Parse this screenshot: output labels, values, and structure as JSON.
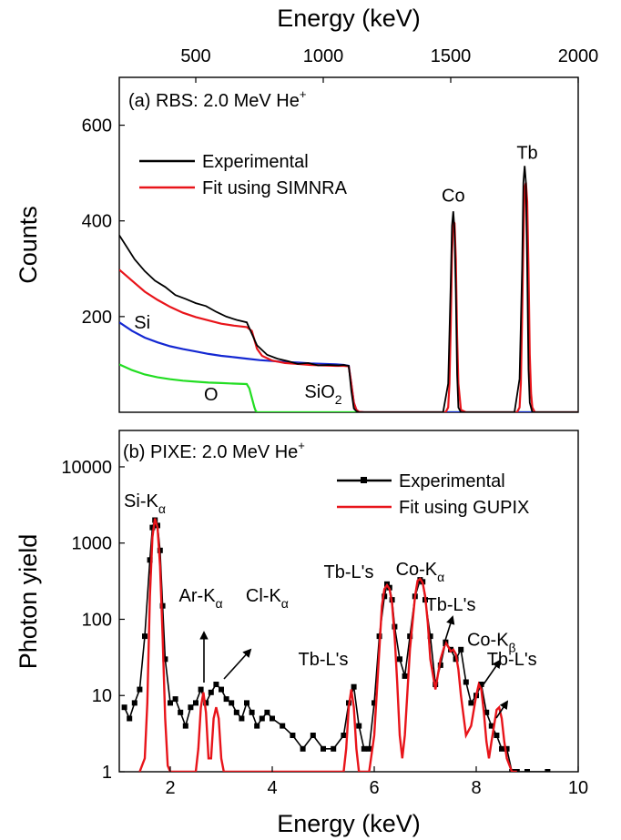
{
  "chart_data": [
    {
      "panel": "a",
      "type": "line",
      "title": "(a) RBS: 2.0 MeV He",
      "title_sup": "+",
      "xlabel": "Energy (keV)",
      "ylabel": "Counts",
      "xlim": [
        200,
        2000
      ],
      "ylim": [
        0,
        700
      ],
      "xticks": [
        500,
        1000,
        1500,
        2000
      ],
      "yticks": [
        200,
        400,
        600
      ],
      "legend": "top-left",
      "annotations": [
        {
          "text": "Co",
          "x": 1510,
          "y": 440
        },
        {
          "text": "Tb",
          "x": 1800,
          "y": 530
        },
        {
          "text": "Si",
          "x": 290,
          "y": 175
        },
        {
          "text": "O",
          "x": 560,
          "y": 25
        },
        {
          "text": "SiO",
          "sub": "2",
          "x": 1000,
          "y": 30
        }
      ],
      "series": [
        {
          "name": "Experimental",
          "color": "#000000",
          "x": [
            200,
            230,
            260,
            300,
            340,
            380,
            420,
            460,
            500,
            540,
            580,
            620,
            660,
            700,
            740,
            780,
            820,
            860,
            900,
            940,
            980,
            1020,
            1060,
            1080,
            1100,
            1110,
            1120,
            1130,
            1140,
            1160,
            1200,
            1300,
            1400,
            1470,
            1490,
            1500,
            1505,
            1510,
            1515,
            1520,
            1525,
            1530,
            1540,
            1560,
            1650,
            1750,
            1770,
            1780,
            1785,
            1790,
            1795,
            1800,
            1805,
            1810,
            1820,
            1840,
            1900,
            2000
          ],
          "y": [
            370,
            345,
            320,
            295,
            275,
            262,
            245,
            237,
            228,
            222,
            210,
            200,
            193,
            188,
            140,
            120,
            112,
            107,
            101,
            103,
            98,
            99,
            98,
            99,
            97,
            45,
            8,
            2,
            0,
            0,
            0,
            0,
            0,
            0,
            60,
            270,
            390,
            420,
            380,
            250,
            80,
            10,
            0,
            0,
            0,
            0,
            70,
            300,
            480,
            515,
            480,
            300,
            90,
            20,
            0,
            0,
            0,
            0
          ]
        },
        {
          "name": "Fit using SIMNRA",
          "color": "#e8141a",
          "x": [
            200,
            250,
            300,
            350,
            400,
            450,
            500,
            550,
            600,
            650,
            700,
            720,
            740,
            760,
            800,
            850,
            900,
            950,
            1000,
            1050,
            1080,
            1100,
            1110,
            1120,
            1130,
            1140,
            1160,
            1400,
            1480,
            1490,
            1495,
            1500,
            1505,
            1510,
            1515,
            1520,
            1525,
            1530,
            1540,
            1560,
            1700,
            1760,
            1770,
            1775,
            1780,
            1785,
            1790,
            1795,
            1800,
            1805,
            1810,
            1815,
            1820,
            1830,
            1850,
            2000
          ],
          "y": [
            298,
            275,
            252,
            235,
            220,
            208,
            199,
            192,
            185,
            181,
            178,
            170,
            133,
            118,
            108,
            103,
            101,
            99,
            98,
            97,
            97,
            96,
            60,
            20,
            5,
            1,
            0,
            0,
            0,
            10,
            60,
            180,
            330,
            400,
            395,
            320,
            160,
            60,
            5,
            0,
            0,
            0,
            10,
            60,
            200,
            360,
            470,
            480,
            440,
            300,
            120,
            40,
            10,
            0,
            0,
            0
          ]
        },
        {
          "color": "#1428d2",
          "x": [
            200,
            250,
            300,
            350,
            400,
            450,
            500,
            550,
            600,
            650,
            700,
            750,
            800,
            850,
            900,
            950,
            1000,
            1050,
            1080,
            1100,
            1110,
            1120,
            1130,
            1140,
            1160,
            2000
          ],
          "y": [
            188,
            170,
            156,
            146,
            138,
            132,
            127,
            122,
            118,
            115,
            112,
            109,
            107,
            105,
            104,
            102,
            101,
            100,
            99,
            97,
            60,
            20,
            5,
            1,
            0,
            0
          ]
        },
        {
          "color": "#22dd22",
          "x": [
            200,
            250,
            300,
            350,
            400,
            450,
            500,
            550,
            600,
            650,
            700,
            710,
            720,
            730,
            735,
            740,
            2000
          ],
          "y": [
            100,
            88,
            79,
            73,
            69,
            66,
            64,
            62,
            61,
            60,
            59,
            50,
            30,
            10,
            3,
            0,
            0
          ]
        }
      ]
    },
    {
      "panel": "b",
      "type": "line",
      "title": "(b) PIXE: 2.0 MeV He",
      "title_sup": "+",
      "xlabel": "Energy (keV)",
      "ylabel": "Photon yield",
      "xlim": [
        1,
        10
      ],
      "ylim": [
        1,
        30000
      ],
      "yscale": "log",
      "xticks": [
        2,
        4,
        6,
        8,
        10
      ],
      "yticks": [
        1,
        10,
        100,
        1000,
        10000
      ],
      "legend": "top-right",
      "annotations": [
        {
          "text": "Si-K",
          "sub": "α",
          "x": 1.5,
          "y": 3000
        },
        {
          "text": "Ar-K",
          "sub": "α",
          "x": 2.6,
          "y": 170
        },
        {
          "text": "Cl-K",
          "sub": "α",
          "x": 3.9,
          "y": 170
        },
        {
          "text": "Tb-L's",
          "x": 5.5,
          "y": 350
        },
        {
          "text": "Co-K",
          "sub": "α",
          "x": 6.9,
          "y": 380
        },
        {
          "text": "Tb-L's",
          "x": 7.5,
          "y": 130
        },
        {
          "text": "Tb-L's",
          "x": 5.0,
          "y": 25
        },
        {
          "text": "Co-K",
          "sub": "β",
          "x": 8.3,
          "y": 45
        },
        {
          "text": "Tb-L's",
          "x": 8.7,
          "y": 25
        }
      ],
      "series": [
        {
          "name": "Experimental",
          "color": "#000000",
          "x": [
            1.1,
            1.2,
            1.3,
            1.4,
            1.5,
            1.6,
            1.65,
            1.7,
            1.75,
            1.8,
            1.85,
            1.9,
            2.0,
            2.1,
            2.2,
            2.3,
            2.4,
            2.5,
            2.6,
            2.7,
            2.8,
            2.9,
            3.0,
            3.1,
            3.2,
            3.3,
            3.4,
            3.5,
            3.6,
            3.7,
            3.8,
            3.9,
            4.0,
            4.2,
            4.4,
            4.6,
            4.8,
            5.0,
            5.2,
            5.4,
            5.5,
            5.6,
            5.7,
            5.8,
            5.9,
            6.0,
            6.1,
            6.2,
            6.25,
            6.3,
            6.35,
            6.4,
            6.5,
            6.6,
            6.7,
            6.8,
            6.9,
            6.95,
            7.0,
            7.1,
            7.2,
            7.3,
            7.4,
            7.5,
            7.6,
            7.7,
            7.8,
            7.9,
            8.0,
            8.1,
            8.2,
            8.3,
            8.4,
            8.5,
            8.6,
            8.7,
            8.8,
            9.0,
            9.4
          ],
          "y": [
            7,
            5,
            8,
            12,
            60,
            600,
            1600,
            2000,
            1700,
            800,
            150,
            30,
            8,
            9,
            6,
            4,
            7,
            8,
            12,
            8,
            11,
            14,
            12,
            9,
            8,
            6,
            5,
            8,
            6,
            4,
            5,
            6,
            5,
            4,
            3,
            2,
            3,
            2,
            2,
            3,
            8,
            13,
            4,
            2,
            2,
            8,
            60,
            200,
            290,
            260,
            180,
            80,
            30,
            18,
            60,
            200,
            330,
            310,
            180,
            60,
            14,
            25,
            50,
            40,
            30,
            40,
            15,
            8,
            10,
            14,
            6,
            4,
            3,
            2,
            2,
            1,
            1,
            1,
            1
          ]
        },
        {
          "name": "Fit using GUPIX",
          "color": "#e8141a",
          "x": [
            1.4,
            1.5,
            1.55,
            1.6,
            1.65,
            1.7,
            1.75,
            1.8,
            1.85,
            1.9,
            1.95,
            2.0,
            2.05,
            2.5,
            2.55,
            2.6,
            2.65,
            2.7,
            2.75,
            2.8,
            2.85,
            2.9,
            2.95,
            3.0,
            3.05,
            3.1,
            3.15,
            5.4,
            5.45,
            5.5,
            5.55,
            5.6,
            5.65,
            5.7,
            5.9,
            6.0,
            6.1,
            6.15,
            6.2,
            6.25,
            6.3,
            6.35,
            6.4,
            6.45,
            6.5,
            6.55,
            6.6,
            6.7,
            6.8,
            6.85,
            6.9,
            6.95,
            7.0,
            7.05,
            7.1,
            7.2,
            7.3,
            7.4,
            7.5,
            7.55,
            7.6,
            7.65,
            7.7,
            7.8,
            7.9,
            8.0,
            8.05,
            8.1,
            8.15,
            8.2,
            8.25,
            8.3,
            8.4,
            8.45,
            8.5,
            8.55,
            8.6,
            8.7,
            8.8
          ],
          "y": [
            1,
            1.5,
            8,
            200,
            1200,
            2100,
            1600,
            500,
            60,
            5,
            1.2,
            1,
            1,
            1,
            2,
            7,
            11,
            6,
            1.5,
            1.5,
            5,
            7,
            5,
            1.5,
            1,
            1,
            1,
            1,
            2,
            7,
            12,
            7,
            2,
            1,
            1,
            3,
            40,
            150,
            250,
            280,
            250,
            160,
            60,
            15,
            3,
            1.5,
            3,
            40,
            200,
            320,
            340,
            300,
            200,
            90,
            30,
            12,
            30,
            50,
            38,
            40,
            35,
            22,
            10,
            3,
            4,
            10,
            14,
            12,
            6,
            2.5,
            1.5,
            2.5,
            6.5,
            7,
            5,
            2.5,
            1.5,
            1,
            1
          ]
        }
      ]
    }
  ]
}
